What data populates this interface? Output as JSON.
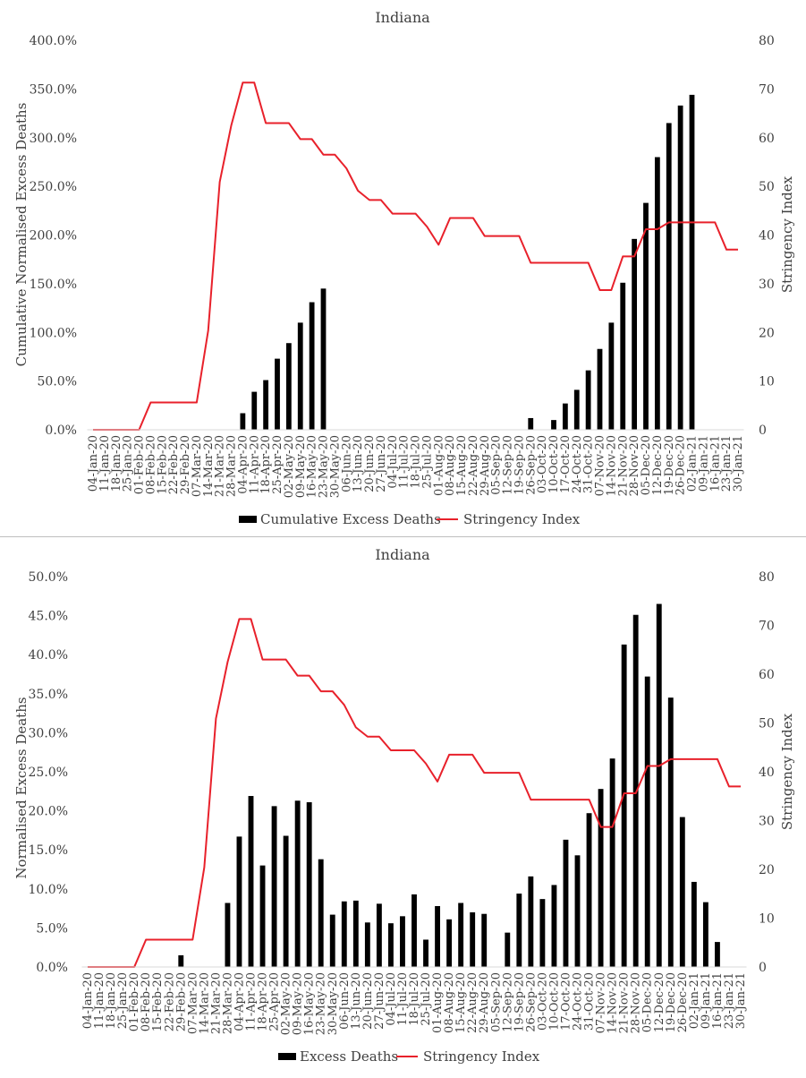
{
  "chart_data": [
    {
      "type": "bar",
      "title": "Indiana",
      "ylabel": "Cumulative Normalised Excess Deaths",
      "y2label": "Stringency Index",
      "ylim": [
        0,
        400
      ],
      "y2lim": [
        0,
        80
      ],
      "yticks": [
        "0.0%",
        "50.0%",
        "100.0%",
        "150.0%",
        "200.0%",
        "250.0%",
        "300.0%",
        "350.0%",
        "400.0%"
      ],
      "y2ticks": [
        "0",
        "10",
        "20",
        "30",
        "40",
        "50",
        "60",
        "70",
        "80"
      ],
      "grid": false,
      "legend_position": "bottom",
      "categories": [
        "04-Jan-20",
        "11-Jan-20",
        "18-Jan-20",
        "25-Jan-20",
        "01-Feb-20",
        "08-Feb-20",
        "15-Feb-20",
        "22-Feb-20",
        "29-Feb-20",
        "07-Mar-20",
        "14-Mar-20",
        "21-Mar-20",
        "28-Mar-20",
        "04-Apr-20",
        "11-Apr-20",
        "18-Apr-20",
        "25-Apr-20",
        "02-May-20",
        "09-May-20",
        "16-May-20",
        "23-May-20",
        "30-May-20",
        "06-Jun-20",
        "13-Jun-20",
        "20-Jun-20",
        "27-Jun-20",
        "04-Jul-20",
        "11-Jul-20",
        "18-Jul-20",
        "25-Jul-20",
        "01-Aug-20",
        "08-Aug-20",
        "15-Aug-20",
        "22-Aug-20",
        "29-Aug-20",
        "05-Sep-20",
        "12-Sep-20",
        "19-Sep-20",
        "26-Sep-20",
        "03-Oct-20",
        "10-Oct-20",
        "17-Oct-20",
        "24-Oct-20",
        "31-Oct-20",
        "07-Nov-20",
        "14-Nov-20",
        "21-Nov-20",
        "28-Nov-20",
        "05-Dec-20",
        "12-Dec-20",
        "19-Dec-20",
        "26-Dec-20",
        "02-Jan-21",
        "09-Jan-21",
        "16-Jan-21",
        "23-Jan-21",
        "30-Jan-21"
      ],
      "series": [
        {
          "name": "Cumulative Excess Deaths",
          "type": "bar",
          "axis": "left",
          "color": "#000000",
          "values": [
            null,
            null,
            null,
            null,
            null,
            null,
            null,
            null,
            null,
            null,
            null,
            null,
            null,
            17,
            39,
            51,
            73,
            89,
            110,
            131,
            145,
            null,
            null,
            null,
            null,
            null,
            null,
            null,
            null,
            null,
            null,
            null,
            null,
            null,
            null,
            null,
            null,
            null,
            12,
            null,
            10,
            27,
            41,
            61,
            83,
            110,
            151,
            196,
            233,
            280,
            315,
            333,
            344,
            null,
            null,
            null,
            null
          ]
        },
        {
          "name": "Stringency Index",
          "type": "line",
          "axis": "right",
          "color": "#e8212b",
          "values": [
            0,
            0,
            0,
            0,
            0,
            5.6,
            5.6,
            5.6,
            5.6,
            5.6,
            20.4,
            50.9,
            62.5,
            71.3,
            71.3,
            63,
            63,
            63,
            59.7,
            59.7,
            56.5,
            56.5,
            53.7,
            49.1,
            47.2,
            47.2,
            44.4,
            44.4,
            44.4,
            41.7,
            38,
            43.5,
            43.5,
            43.5,
            39.8,
            39.8,
            39.8,
            39.8,
            34.3,
            34.3,
            34.3,
            34.3,
            34.3,
            34.3,
            28.7,
            28.7,
            35.6,
            35.6,
            41.2,
            41.2,
            42.6,
            42.6,
            42.6,
            42.6,
            42.6,
            37,
            37
          ]
        }
      ]
    },
    {
      "type": "bar",
      "title": "Indiana",
      "ylabel": "Normalised Excess Deaths",
      "y2label": "Stringency Index",
      "ylim": [
        0,
        50
      ],
      "y2lim": [
        0,
        80
      ],
      "yticks": [
        "0.0%",
        "5.0%",
        "10.0%",
        "15.0%",
        "20.0%",
        "25.0%",
        "30.0%",
        "35.0%",
        "40.0%",
        "45.0%",
        "50.0%"
      ],
      "y2ticks": [
        "0",
        "10",
        "20",
        "30",
        "40",
        "50",
        "60",
        "70",
        "80"
      ],
      "grid": false,
      "legend_position": "bottom",
      "categories": [
        "04-Jan-20",
        "11-Jan-20",
        "18-Jan-20",
        "25-Jan-20",
        "01-Feb-20",
        "08-Feb-20",
        "15-Feb-20",
        "22-Feb-20",
        "29-Feb-20",
        "07-Mar-20",
        "14-Mar-20",
        "21-Mar-20",
        "28-Mar-20",
        "04-Apr-20",
        "11-Apr-20",
        "18-Apr-20",
        "25-Apr-20",
        "02-May-20",
        "09-May-20",
        "16-May-20",
        "23-May-20",
        "30-May-20",
        "06-Jun-20",
        "13-Jun-20",
        "20-Jun-20",
        "27-Jun-20",
        "04-Jul-20",
        "11-Jul-20",
        "18-Jul-20",
        "25-Jul-20",
        "01-Aug-20",
        "08-Aug-20",
        "15-Aug-20",
        "22-Aug-20",
        "29-Aug-20",
        "05-Sep-20",
        "12-Sep-20",
        "19-Sep-20",
        "26-Sep-20",
        "03-Oct-20",
        "10-Oct-20",
        "17-Oct-20",
        "24-Oct-20",
        "31-Oct-20",
        "07-Nov-20",
        "14-Nov-20",
        "21-Nov-20",
        "28-Nov-20",
        "05-Dec-20",
        "12-Dec-20",
        "19-Dec-20",
        "26-Dec-20",
        "02-Jan-21",
        "09-Jan-21",
        "16-Jan-21",
        "23-Jan-21",
        "30-Jan-21"
      ],
      "series": [
        {
          "name": "Excess Deaths",
          "type": "bar",
          "axis": "left",
          "color": "#000000",
          "values": [
            null,
            null,
            null,
            null,
            null,
            null,
            null,
            null,
            1.5,
            null,
            null,
            null,
            8.2,
            16.7,
            21.9,
            13,
            20.6,
            16.8,
            21.3,
            21.1,
            13.8,
            6.7,
            8.4,
            8.5,
            5.7,
            8.1,
            5.6,
            6.5,
            9.3,
            3.5,
            7.8,
            6.1,
            8.2,
            7,
            6.8,
            null,
            4.4,
            9.4,
            11.6,
            8.7,
            10.5,
            16.3,
            14.3,
            19.7,
            22.8,
            26.7,
            41.3,
            45.1,
            37.2,
            46.5,
            34.5,
            19.2,
            10.9,
            8.3,
            3.2,
            null,
            null
          ]
        },
        {
          "name": "Stringency Index",
          "type": "line",
          "axis": "right",
          "color": "#e8212b",
          "values": [
            0,
            0,
            0,
            0,
            0,
            5.6,
            5.6,
            5.6,
            5.6,
            5.6,
            20.4,
            50.9,
            62.5,
            71.3,
            71.3,
            63,
            63,
            63,
            59.7,
            59.7,
            56.5,
            56.5,
            53.7,
            49.1,
            47.2,
            47.2,
            44.4,
            44.4,
            44.4,
            41.7,
            38,
            43.5,
            43.5,
            43.5,
            39.8,
            39.8,
            39.8,
            39.8,
            34.3,
            34.3,
            34.3,
            34.3,
            34.3,
            34.3,
            28.7,
            28.7,
            35.6,
            35.6,
            41.2,
            41.2,
            42.6,
            42.6,
            42.6,
            42.6,
            42.6,
            37,
            37
          ]
        }
      ]
    }
  ]
}
